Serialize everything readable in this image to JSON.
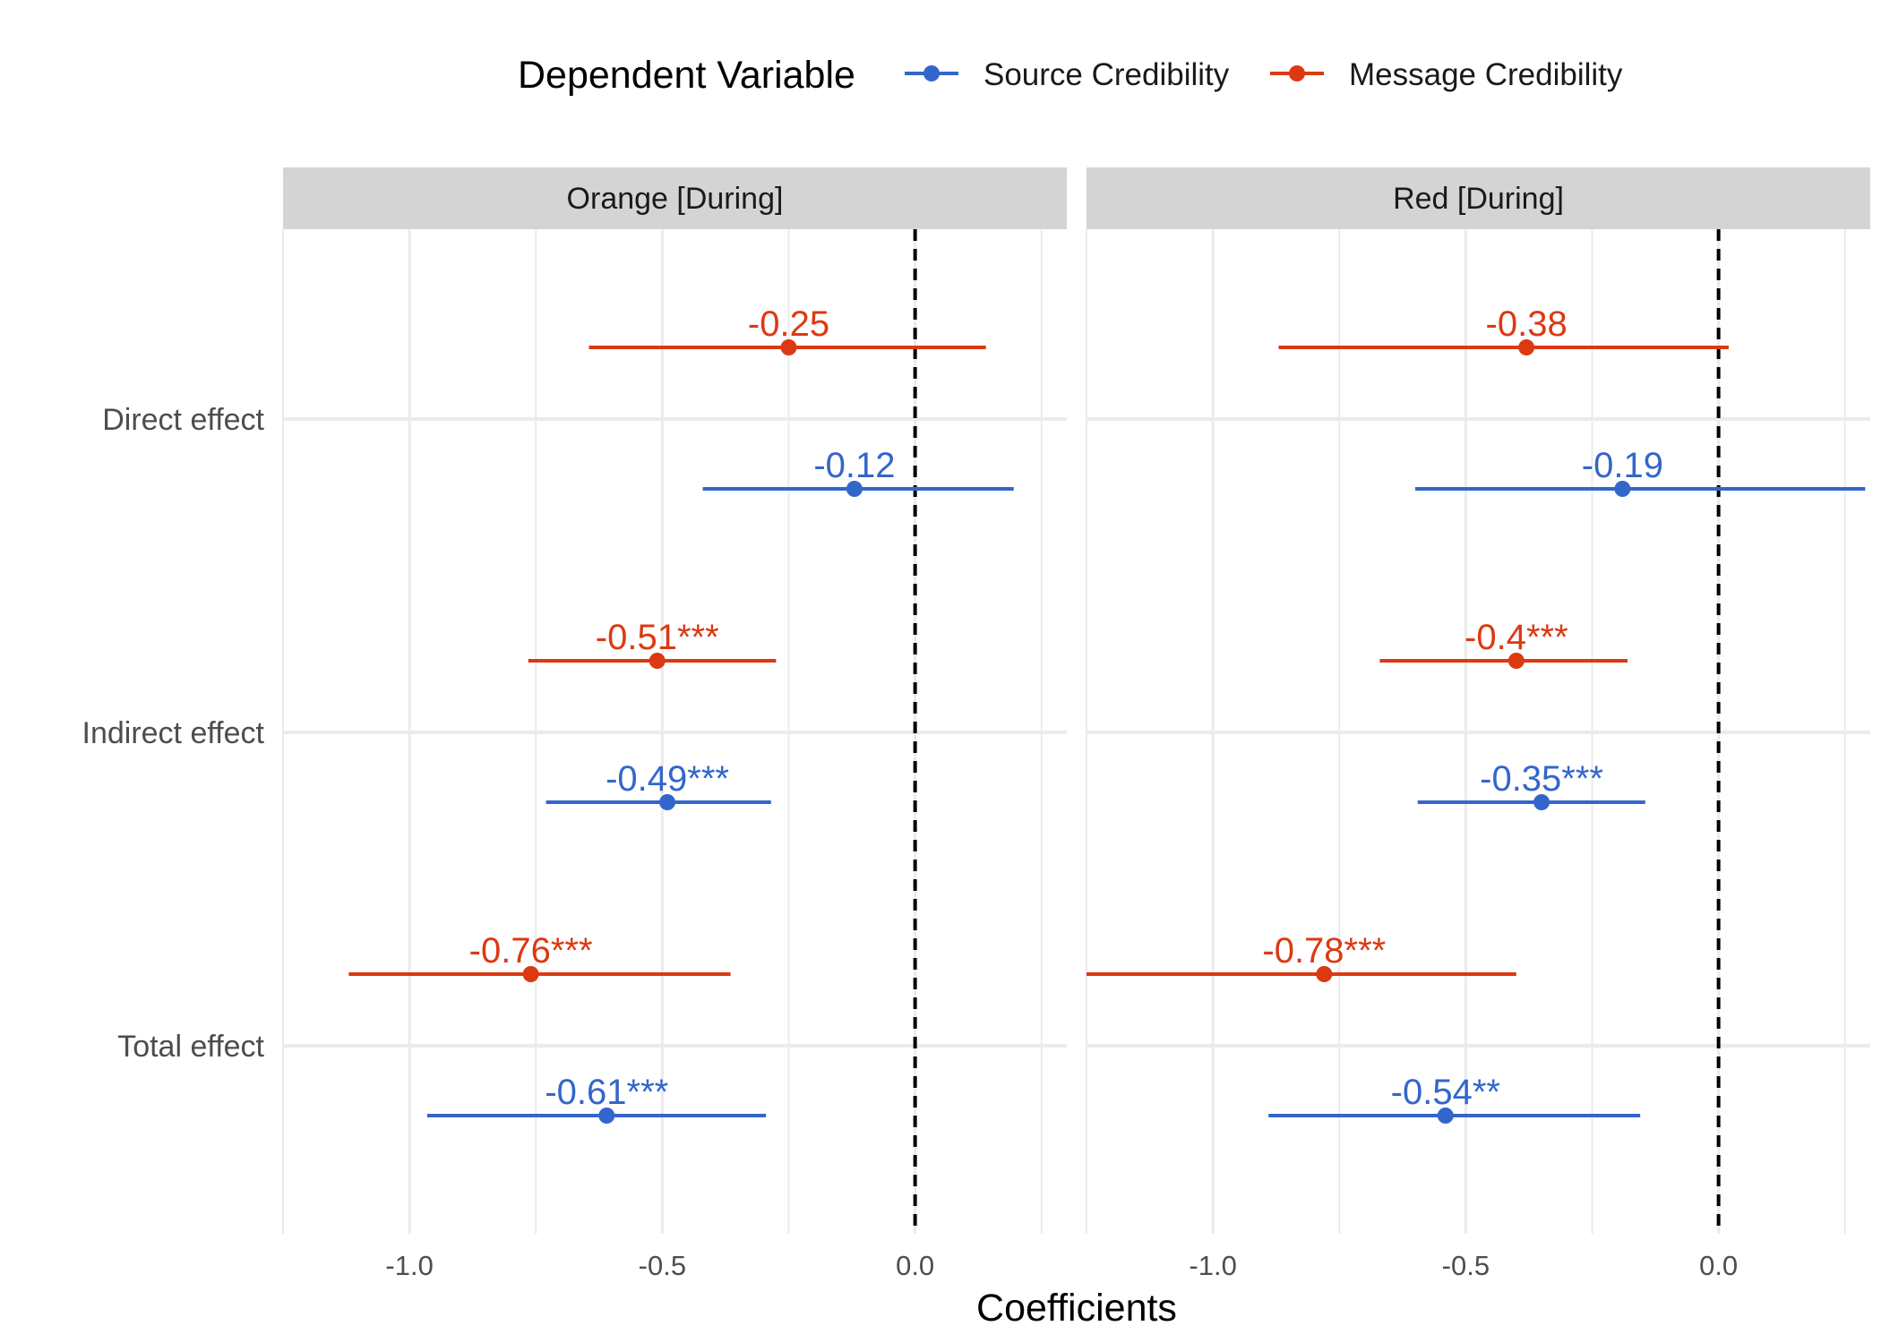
{
  "chart_data": {
    "type": "forest",
    "xlabel": "Coefficients",
    "legend": {
      "title": "Dependent Variable",
      "position": "top"
    },
    "colors": {
      "Source Credibility": "#3366cc",
      "Message Credibility": "#dc3912",
      "strip_bg": "#d4d4d4",
      "grid": "#ebebeb",
      "zero_line": "#000000"
    },
    "categories": [
      "Direct effect",
      "Indirect effect",
      "Total effect"
    ],
    "xlim": [
      -1.25,
      0.3
    ],
    "x_ticks": [
      {
        "value": -1.0,
        "label": "-1.0"
      },
      {
        "value": -0.5,
        "label": "-0.5"
      },
      {
        "value": 0.0,
        "label": "0.0"
      }
    ],
    "reference_line": 0,
    "series_order": [
      "Source Credibility",
      "Message Credibility"
    ],
    "panels": [
      {
        "title": "Orange [During]",
        "points": [
          {
            "category": "Direct effect",
            "series": "Message Credibility",
            "estimate": -0.25,
            "low": -0.645,
            "high": 0.14,
            "label": "-0.25"
          },
          {
            "category": "Direct effect",
            "series": "Source Credibility",
            "estimate": -0.12,
            "low": -0.42,
            "high": 0.195,
            "label": "-0.12"
          },
          {
            "category": "Indirect effect",
            "series": "Message Credibility",
            "estimate": -0.51,
            "low": -0.765,
            "high": -0.275,
            "label": "-0.51***"
          },
          {
            "category": "Indirect effect",
            "series": "Source Credibility",
            "estimate": -0.49,
            "low": -0.73,
            "high": -0.285,
            "label": "-0.49***"
          },
          {
            "category": "Total effect",
            "series": "Message Credibility",
            "estimate": -0.76,
            "low": -1.12,
            "high": -0.365,
            "label": "-0.76***"
          },
          {
            "category": "Total effect",
            "series": "Source Credibility",
            "estimate": -0.61,
            "low": -0.965,
            "high": -0.295,
            "label": "-0.61***"
          }
        ]
      },
      {
        "title": "Red [During]",
        "points": [
          {
            "category": "Direct effect",
            "series": "Message Credibility",
            "estimate": -0.38,
            "low": -0.87,
            "high": 0.02,
            "label": "-0.38"
          },
          {
            "category": "Direct effect",
            "series": "Source Credibility",
            "estimate": -0.19,
            "low": -0.6,
            "high": 0.29,
            "label": "-0.19"
          },
          {
            "category": "Indirect effect",
            "series": "Message Credibility",
            "estimate": -0.4,
            "low": -0.67,
            "high": -0.18,
            "label": "-0.4***"
          },
          {
            "category": "Indirect effect",
            "series": "Source Credibility",
            "estimate": -0.35,
            "low": -0.595,
            "high": -0.145,
            "label": "-0.35***"
          },
          {
            "category": "Total effect",
            "series": "Message Credibility",
            "estimate": -0.78,
            "low": -1.25,
            "high": -0.4,
            "label": "-0.78***"
          },
          {
            "category": "Total effect",
            "series": "Source Credibility",
            "estimate": -0.54,
            "low": -0.89,
            "high": -0.155,
            "label": "-0.54**"
          }
        ]
      }
    ]
  }
}
